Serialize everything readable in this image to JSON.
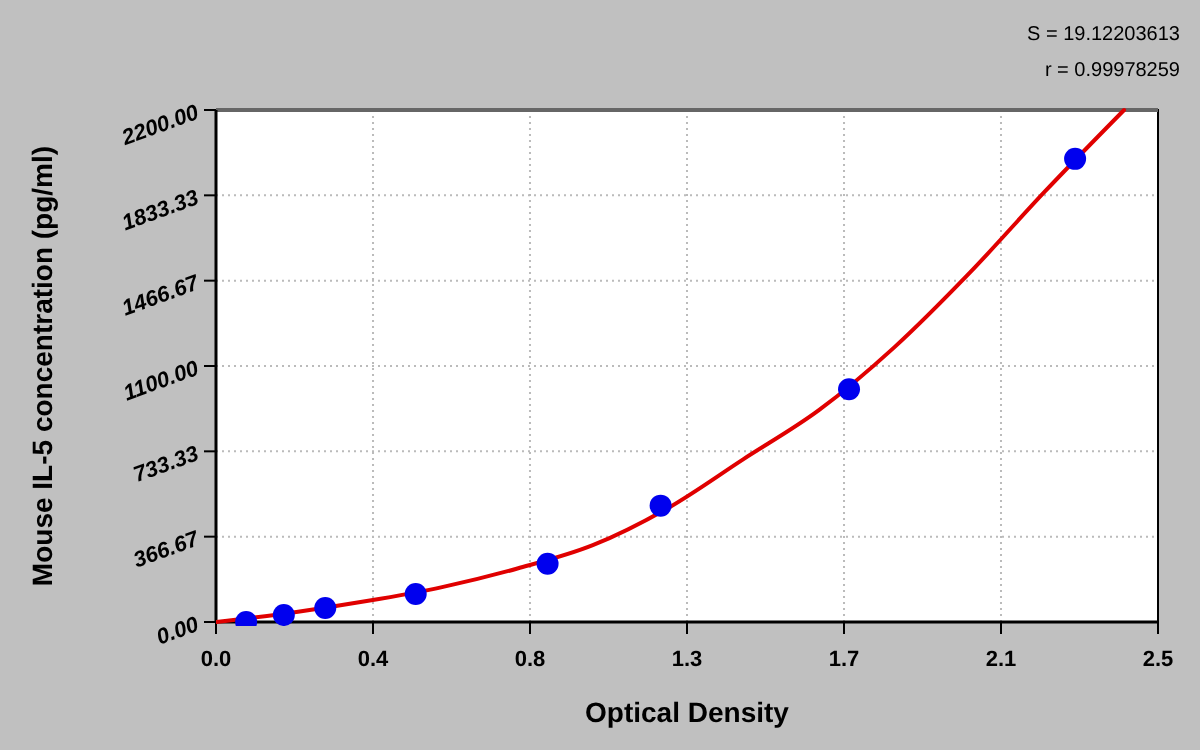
{
  "chart_data": {
    "type": "scatter",
    "xlabel": "Optical Density",
    "ylabel": "Mouse IL-5 concentration (pg/ml)",
    "annotations": [
      "S = 19.12203613",
      "r = 0.99978259"
    ],
    "xlim": [
      0,
      2.5
    ],
    "ylim": [
      0,
      2200
    ],
    "xticks": [
      {
        "value": 0,
        "label": "0.0"
      },
      {
        "value": 0.4167,
        "label": "0.4"
      },
      {
        "value": 0.8333,
        "label": "0.8"
      },
      {
        "value": 1.25,
        "label": "1.3"
      },
      {
        "value": 1.6667,
        "label": "1.7"
      },
      {
        "value": 2.0833,
        "label": "2.1"
      },
      {
        "value": 2.5,
        "label": "2.5"
      }
    ],
    "yticks": [
      {
        "value": 0,
        "label": "0.00"
      },
      {
        "value": 366.67,
        "label": "366.67"
      },
      {
        "value": 733.33,
        "label": "733.33"
      },
      {
        "value": 1100,
        "label": "1100.00"
      },
      {
        "value": 1466.67,
        "label": "1466.67"
      },
      {
        "value": 1833.33,
        "label": "1833.33"
      },
      {
        "value": 2200,
        "label": "2200.00"
      }
    ],
    "grid": true,
    "marker": "circle",
    "series": [
      {
        "color": "#0000ee",
        "x": [
          0.08,
          0.18,
          0.29,
          0.53,
          0.88,
          1.18,
          1.68,
          2.28
        ],
        "values": [
          0,
          30,
          60,
          120,
          250,
          500,
          1000,
          1990
        ]
      },
      {
        "type": "line",
        "color": "#e00000",
        "marker": "none",
        "x": [
          0,
          0.2,
          0.4,
          0.6,
          0.8,
          1.0,
          1.2,
          1.4,
          1.6,
          1.8,
          2.0,
          2.2,
          2.41
        ],
        "values": [
          0,
          40,
          90,
          150,
          230,
          330,
          490,
          700,
          910,
          1180,
          1500,
          1850,
          2200
        ]
      }
    ]
  }
}
